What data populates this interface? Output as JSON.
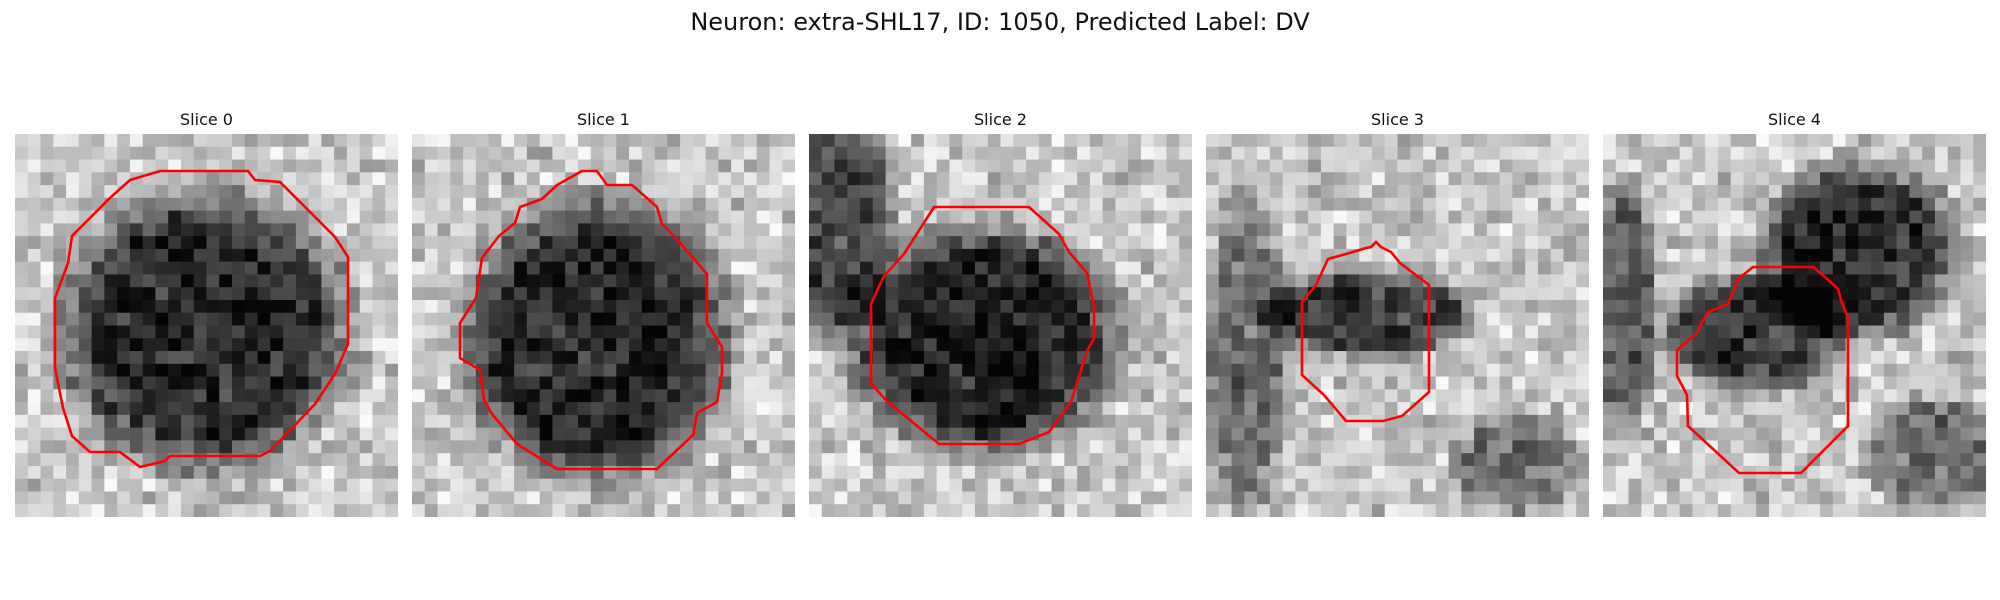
{
  "figure": {
    "title": "Neuron: extra-SHL17, ID: 1050, Predicted Label: DV"
  },
  "panels": [
    {
      "title": "Slice 0"
    },
    {
      "title": "Slice 1"
    },
    {
      "title": "Slice 2"
    },
    {
      "title": "Slice 3"
    },
    {
      "title": "Slice 4"
    }
  ],
  "colors": {
    "contour": "#ff0000",
    "background": "#ffffff"
  }
}
